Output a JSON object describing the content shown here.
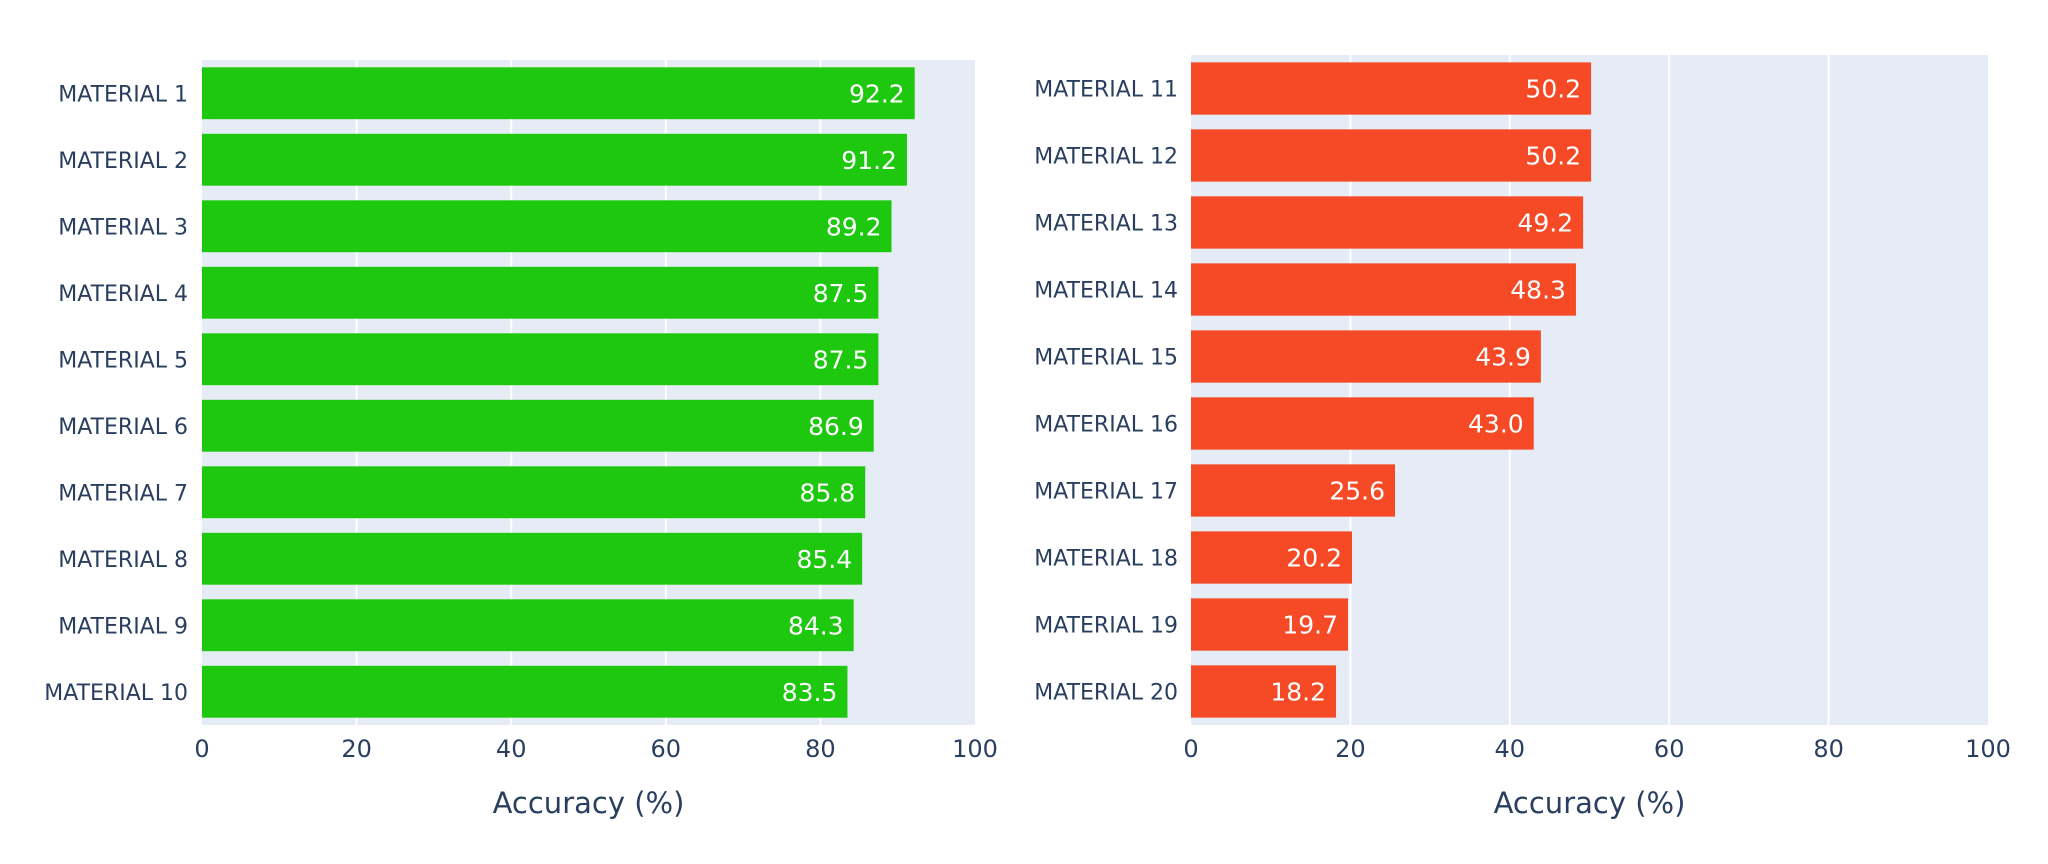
{
  "chart_data": [
    {
      "type": "bar",
      "orientation": "horizontal",
      "categories": [
        "MATERIAL 1",
        "MATERIAL 2",
        "MATERIAL 3",
        "MATERIAL 4",
        "MATERIAL 5",
        "MATERIAL 6",
        "MATERIAL 7",
        "MATERIAL 8",
        "MATERIAL 9",
        "MATERIAL 10"
      ],
      "values": [
        92.2,
        91.2,
        89.2,
        87.5,
        87.5,
        86.9,
        85.8,
        85.4,
        84.3,
        83.5
      ],
      "value_labels": [
        "92.2",
        "91.2",
        "89.2",
        "87.5",
        "87.5",
        "86.9",
        "85.8",
        "85.4",
        "84.3",
        "83.5"
      ],
      "xlabel": "Accuracy (%)",
      "xlim": [
        0,
        100
      ],
      "xticks": [
        "0",
        "20",
        "40",
        "60",
        "80",
        "100"
      ],
      "bar_color": "#1ec80e",
      "plot_bg": "#e5ecf6",
      "grid": true
    },
    {
      "type": "bar",
      "orientation": "horizontal",
      "categories": [
        "MATERIAL 11",
        "MATERIAL 12",
        "MATERIAL 13",
        "MATERIAL 14",
        "MATERIAL 15",
        "MATERIAL 16",
        "MATERIAL 17",
        "MATERIAL 18",
        "MATERIAL 19",
        "MATERIAL 20"
      ],
      "values": [
        50.2,
        50.2,
        49.2,
        48.3,
        43.9,
        43.0,
        25.6,
        20.2,
        19.7,
        18.2
      ],
      "value_labels": [
        "50.2",
        "50.2",
        "49.2",
        "48.3",
        "43.9",
        "43.0",
        "25.6",
        "20.2",
        "19.7",
        "18.2"
      ],
      "xlabel": "Accuracy (%)",
      "xlim": [
        0,
        100
      ],
      "xticks": [
        "0",
        "20",
        "40",
        "60",
        "80",
        "100"
      ],
      "bar_color": "#f64a26",
      "plot_bg": "#e5ecf6",
      "grid": true
    }
  ]
}
